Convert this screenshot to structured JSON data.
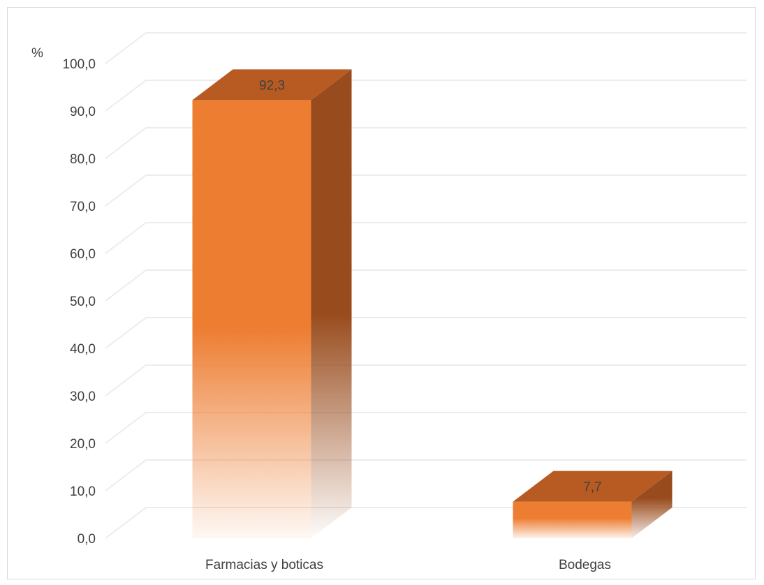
{
  "chart_data": {
    "type": "bar",
    "style": "3d-column",
    "title": "",
    "ylabel": "%",
    "xlabel": "",
    "categories": [
      "Farmacias y boticas",
      "Bodegas"
    ],
    "values": [
      92.3,
      7.7
    ],
    "data_labels": [
      "92,3",
      "7,7"
    ],
    "ylim": [
      0,
      100
    ],
    "yticks": [
      "0,0",
      "10,0",
      "20,0",
      "30,0",
      "40,0",
      "50,0",
      "60,0",
      "70,0",
      "80,0",
      "90,0",
      "100,0"
    ],
    "grid": true,
    "legend": "none"
  },
  "colors": {
    "bar_front": "#ed7d31",
    "bar_top": "#b75b23",
    "bar_side": "#984b1c",
    "grid": "#ececec",
    "text": "#404040"
  }
}
